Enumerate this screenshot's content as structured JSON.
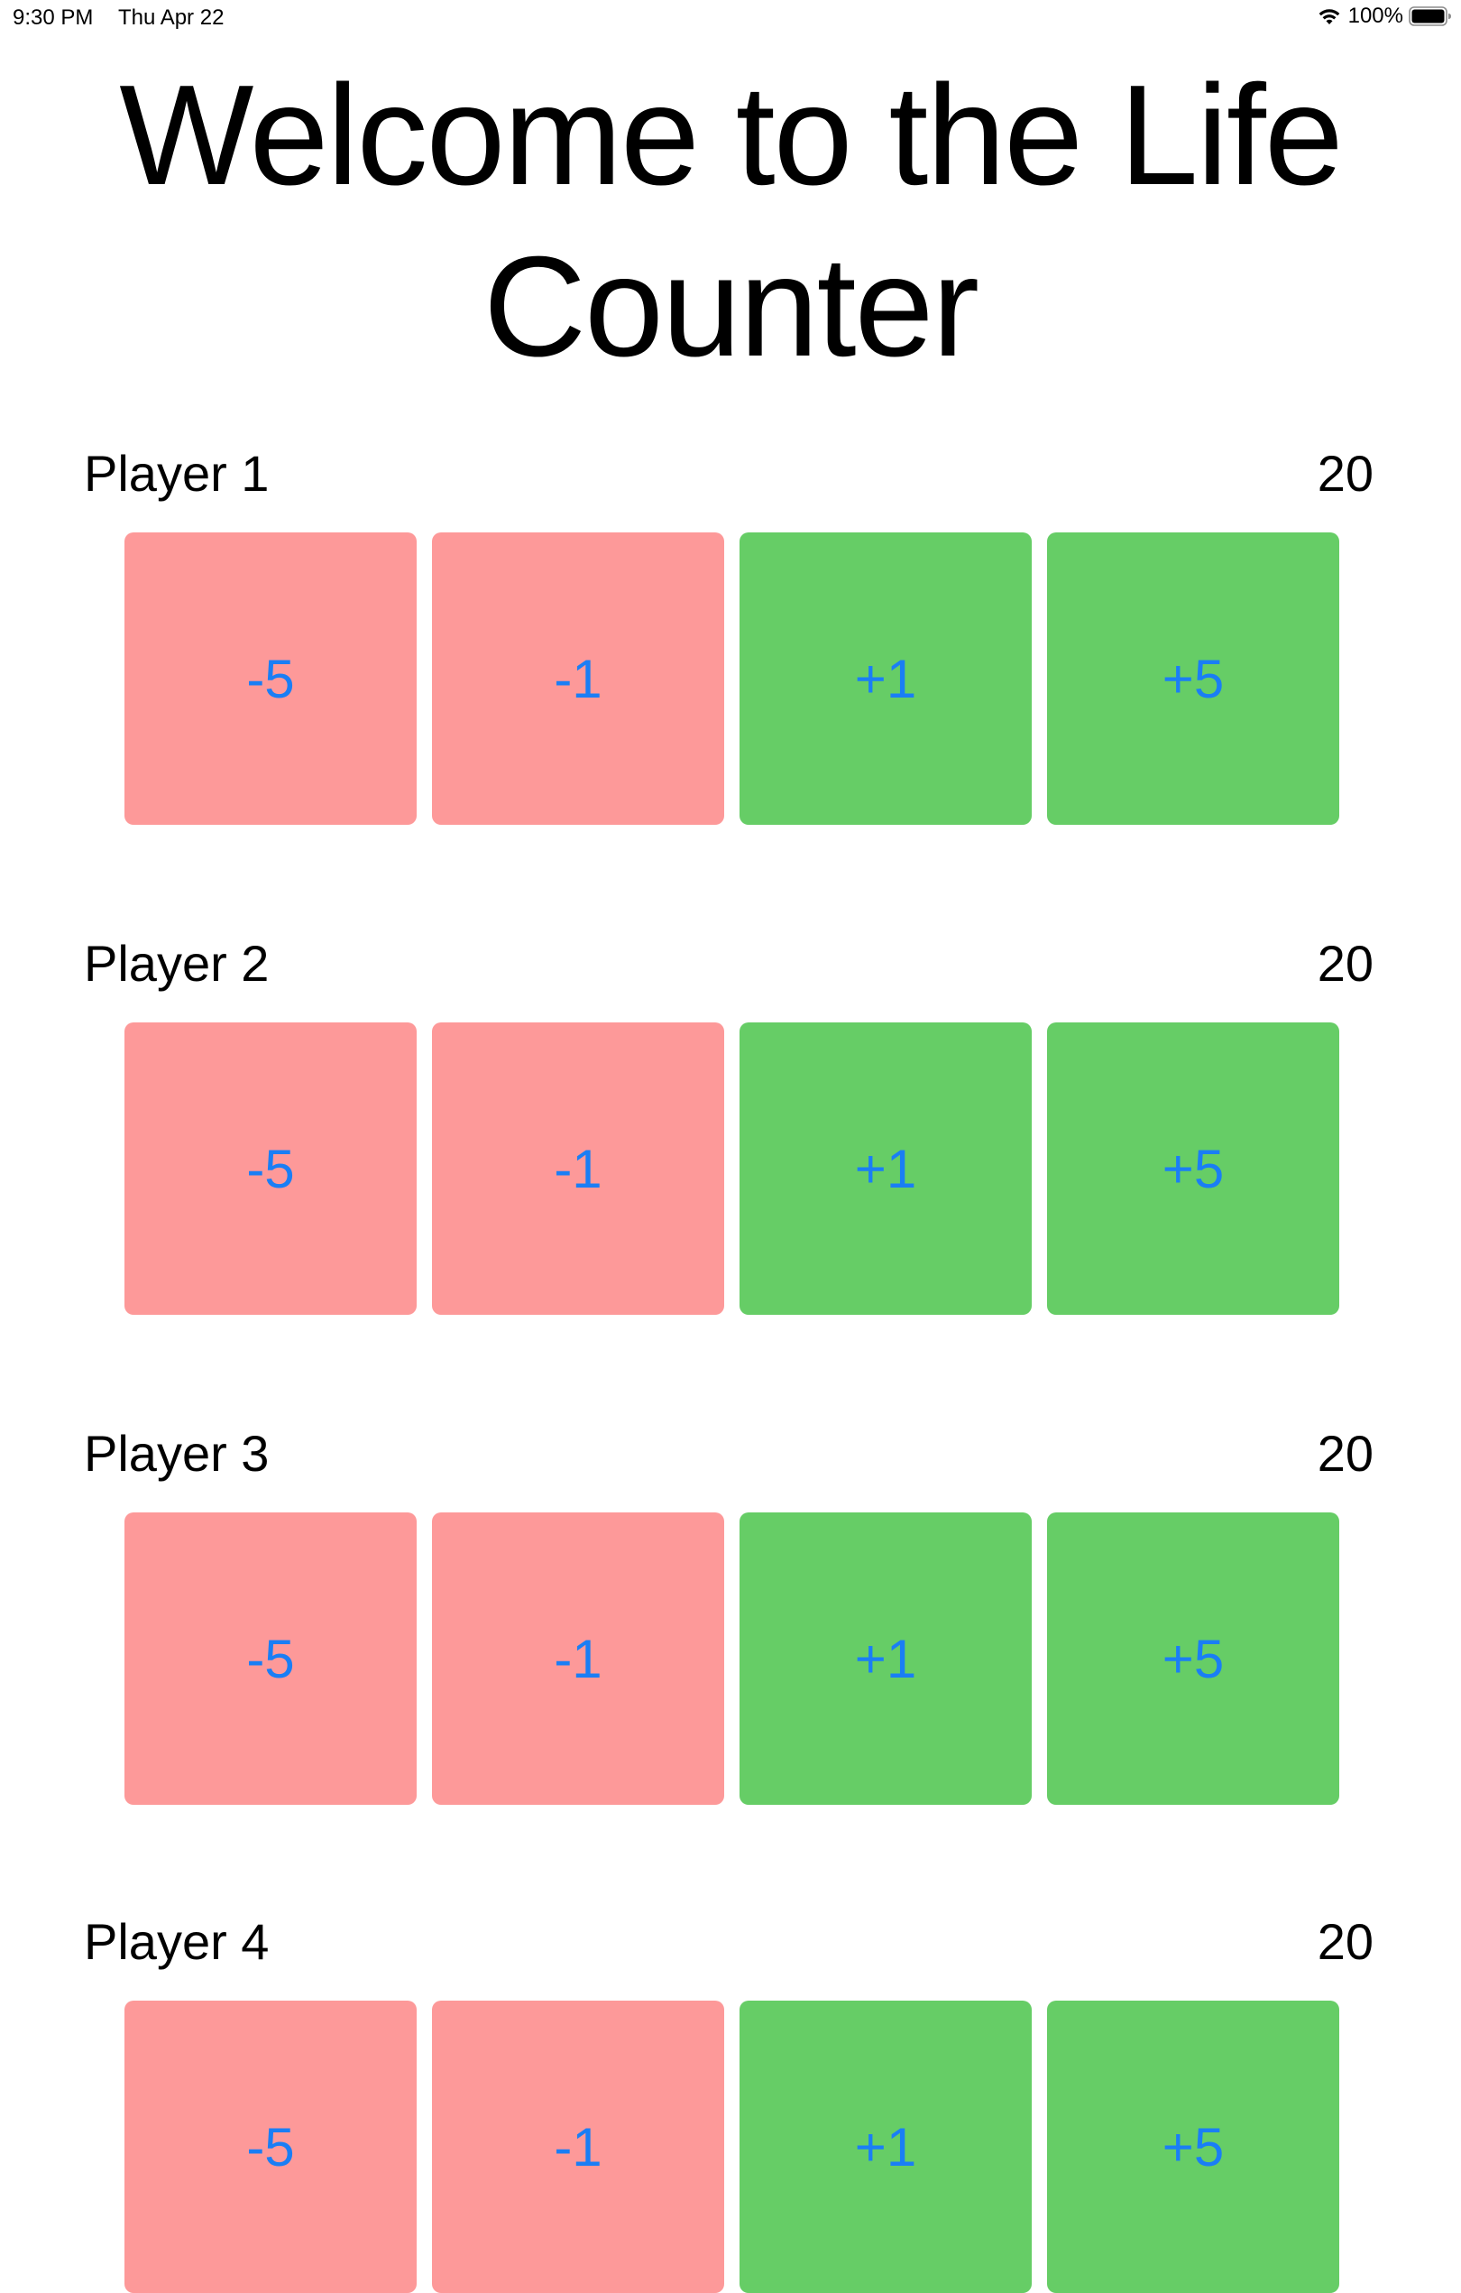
{
  "status_bar": {
    "time": "9:30 PM",
    "date": "Thu Apr 22",
    "battery": "100%",
    "wifi_icon": "wifi-icon",
    "battery_icon": "battery-icon"
  },
  "title": "Welcome to the Life Counter",
  "colors": {
    "minus_button": "#fd9999",
    "plus_button": "#66cd66",
    "button_text": "#1a7ef5"
  },
  "players": [
    {
      "name": "Player 1",
      "life": "20",
      "buttons": [
        "-5",
        "-1",
        "+1",
        "+5"
      ]
    },
    {
      "name": "Player 2",
      "life": "20",
      "buttons": [
        "-5",
        "-1",
        "+1",
        "+5"
      ]
    },
    {
      "name": "Player 3",
      "life": "20",
      "buttons": [
        "-5",
        "-1",
        "+1",
        "+5"
      ]
    },
    {
      "name": "Player 4",
      "life": "20",
      "buttons": [
        "-5",
        "-1",
        "+1",
        "+5"
      ]
    }
  ]
}
